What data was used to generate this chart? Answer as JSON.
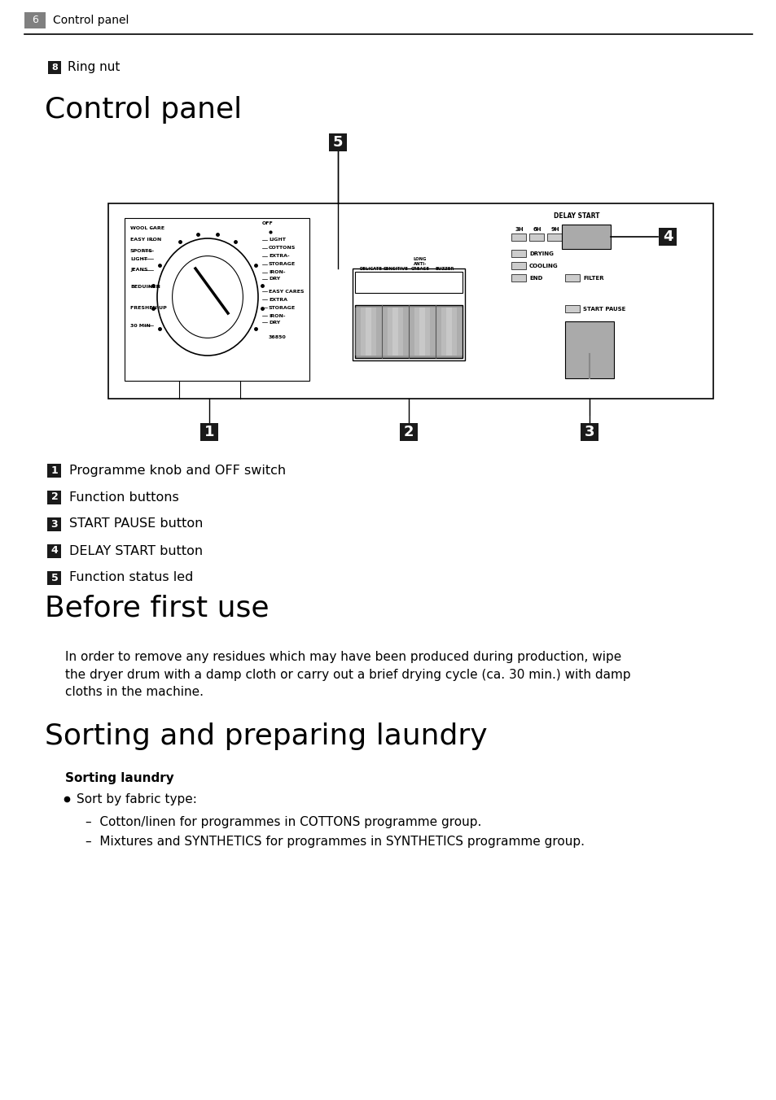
{
  "page_number": "6",
  "page_header_text": "Control panel",
  "ring_nut_label": "8",
  "ring_nut_text": "Ring nut",
  "section1_title": "Control panel",
  "section2_title": "Before first use",
  "section3_title": "Sorting and preparing laundry",
  "section3_subtitle": "Sorting laundry",
  "section3_bullet": "Sort by fabric type:",
  "section3_dash1": "Cotton/linen for programmes in COTTONS programme group.",
  "section3_dash2": "Mixtures and SYNTHETICS for programmes in SYNTHETICS programme group.",
  "before_first_use_text": "In order to remove any residues which may have been produced during production, wipe\nthe dryer drum with a damp cloth or carry out a brief drying cycle (ca. 30 min.) with damp\ncloths in the machine.",
  "legend_items": [
    {
      "num": "1",
      "text": "Programme knob and OFF switch"
    },
    {
      "num": "2",
      "text": "Function buttons"
    },
    {
      "num": "3",
      "text": "START PAUSE button"
    },
    {
      "num": "4",
      "text": "DELAY START button"
    },
    {
      "num": "5",
      "text": "Function status led"
    }
  ],
  "bg_color": "#ffffff",
  "header_bg": "#808080",
  "badge_bg_dark": "#1a1a1a",
  "badge_text_color": "#ffffff",
  "text_color": "#000000",
  "line_color": "#000000"
}
